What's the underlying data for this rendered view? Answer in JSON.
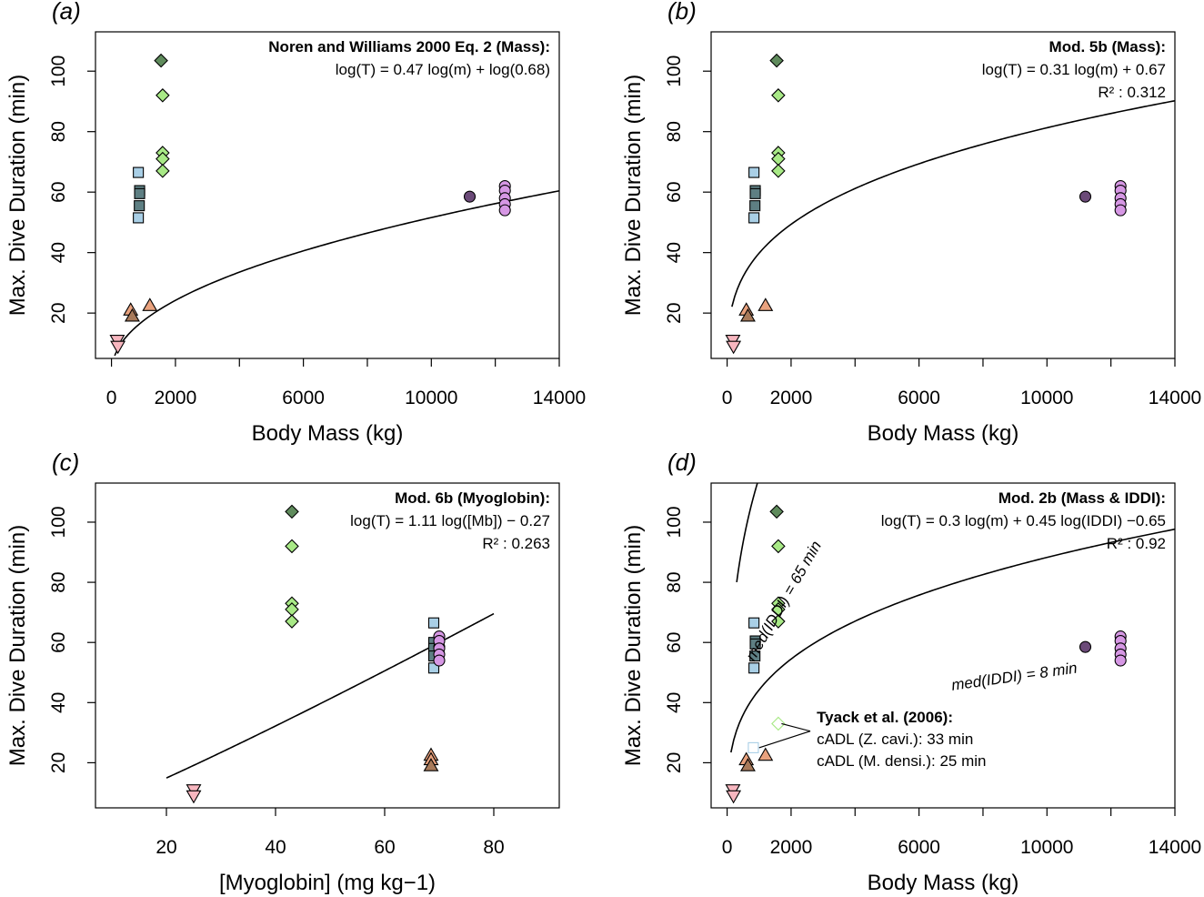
{
  "palette": {
    "triangle_down_pink": "#f7b6bf",
    "triangle_brown": "#a87a5a",
    "triangle_orange": "#e9a27e",
    "square_light": "#a9cfe6",
    "square_dark": "#5e7f83",
    "diamond_dark": "#5f8b5c",
    "diamond_light": "#a8e986",
    "circle_dark": "#6b4a78",
    "circle_light": "#d697e4",
    "outline": "#000000",
    "line": "#000000"
  },
  "chart_data": [
    {
      "panel": "(a)",
      "type": "scatter",
      "xlabel": "Body Mass (kg)",
      "ylabel": "Max. Dive Duration (min)",
      "xlim": [
        -500,
        14000
      ],
      "ylim": [
        5,
        113
      ],
      "xticks": [
        0,
        2000,
        6000,
        10000,
        14000
      ],
      "xticks_minor": [
        4000,
        8000,
        12000
      ],
      "yticks": [
        20,
        40,
        60,
        80,
        100
      ],
      "annotation_title": "Noren and Williams 2000 Eq. 2 (Mass):",
      "annotation_lines": [
        "log(T) = 0.47 log(m) + log(0.68)"
      ],
      "points": [
        {
          "x": 180,
          "y": 11,
          "shape": "tri-down",
          "color": "triangle_down_pink"
        },
        {
          "x": 200,
          "y": 9,
          "shape": "tri-down",
          "color": "triangle_down_pink"
        },
        {
          "x": 600,
          "y": 21,
          "shape": "tri-up",
          "color": "triangle_orange"
        },
        {
          "x": 650,
          "y": 19,
          "shape": "tri-up",
          "color": "triangle_brown"
        },
        {
          "x": 1200,
          "y": 22.5,
          "shape": "tri-up",
          "color": "triangle_orange"
        },
        {
          "x": 840,
          "y": 66.5,
          "shape": "square",
          "color": "square_light"
        },
        {
          "x": 880,
          "y": 60.5,
          "shape": "square",
          "color": "square_dark"
        },
        {
          "x": 880,
          "y": 59.5,
          "shape": "square",
          "color": "square_dark"
        },
        {
          "x": 870,
          "y": 55.5,
          "shape": "square",
          "color": "square_dark"
        },
        {
          "x": 840,
          "y": 51.5,
          "shape": "square",
          "color": "square_light"
        },
        {
          "x": 1550,
          "y": 103.5,
          "shape": "diamond",
          "color": "diamond_dark"
        },
        {
          "x": 1600,
          "y": 92,
          "shape": "diamond",
          "color": "diamond_light"
        },
        {
          "x": 1600,
          "y": 73,
          "shape": "diamond",
          "color": "diamond_light"
        },
        {
          "x": 1600,
          "y": 71,
          "shape": "diamond",
          "color": "diamond_light"
        },
        {
          "x": 1600,
          "y": 67,
          "shape": "diamond",
          "color": "diamond_light"
        },
        {
          "x": 11200,
          "y": 58.5,
          "shape": "circle",
          "color": "circle_dark"
        },
        {
          "x": 12300,
          "y": 62,
          "shape": "circle",
          "color": "circle_light"
        },
        {
          "x": 12300,
          "y": 60.5,
          "shape": "circle",
          "color": "circle_light"
        },
        {
          "x": 12300,
          "y": 58,
          "shape": "circle",
          "color": "circle_light"
        },
        {
          "x": 12300,
          "y": 56,
          "shape": "circle",
          "color": "circle_light"
        },
        {
          "x": 12300,
          "y": 54,
          "shape": "circle",
          "color": "circle_light"
        }
      ],
      "curves": [
        {
          "type": "power",
          "a": 0.68,
          "b": 0.47,
          "x_range": [
            100,
            14000
          ]
        }
      ]
    },
    {
      "panel": "(b)",
      "type": "scatter",
      "xlabel": "Body Mass (kg)",
      "ylabel": "Max. Dive Duration (min)",
      "xlim": [
        -500,
        14000
      ],
      "ylim": [
        5,
        113
      ],
      "xticks": [
        0,
        2000,
        6000,
        10000,
        14000
      ],
      "xticks_minor": [
        4000,
        8000,
        12000
      ],
      "yticks": [
        20,
        40,
        60,
        80,
        100
      ],
      "annotation_title": "Mod. 5b (Mass):",
      "annotation_lines": [
        "log(T) = 0.31 log(m) + 0.67",
        "R² : 0.312"
      ],
      "points": [
        {
          "x": 180,
          "y": 11,
          "shape": "tri-down",
          "color": "triangle_down_pink"
        },
        {
          "x": 200,
          "y": 9,
          "shape": "tri-down",
          "color": "triangle_down_pink"
        },
        {
          "x": 600,
          "y": 21,
          "shape": "tri-up",
          "color": "triangle_orange"
        },
        {
          "x": 650,
          "y": 19,
          "shape": "tri-up",
          "color": "triangle_brown"
        },
        {
          "x": 1200,
          "y": 22.5,
          "shape": "tri-up",
          "color": "triangle_orange"
        },
        {
          "x": 840,
          "y": 66.5,
          "shape": "square",
          "color": "square_light"
        },
        {
          "x": 880,
          "y": 60.5,
          "shape": "square",
          "color": "square_dark"
        },
        {
          "x": 880,
          "y": 59.5,
          "shape": "square",
          "color": "square_dark"
        },
        {
          "x": 870,
          "y": 55.5,
          "shape": "square",
          "color": "square_dark"
        },
        {
          "x": 840,
          "y": 51.5,
          "shape": "square",
          "color": "square_light"
        },
        {
          "x": 1550,
          "y": 103.5,
          "shape": "diamond",
          "color": "diamond_dark"
        },
        {
          "x": 1600,
          "y": 92,
          "shape": "diamond",
          "color": "diamond_light"
        },
        {
          "x": 1600,
          "y": 73,
          "shape": "diamond",
          "color": "diamond_light"
        },
        {
          "x": 1600,
          "y": 71,
          "shape": "diamond",
          "color": "diamond_light"
        },
        {
          "x": 1600,
          "y": 67,
          "shape": "diamond",
          "color": "diamond_light"
        },
        {
          "x": 11200,
          "y": 58.5,
          "shape": "circle",
          "color": "circle_dark"
        },
        {
          "x": 12300,
          "y": 62,
          "shape": "circle",
          "color": "circle_light"
        },
        {
          "x": 12300,
          "y": 60.5,
          "shape": "circle",
          "color": "circle_light"
        },
        {
          "x": 12300,
          "y": 58,
          "shape": "circle",
          "color": "circle_light"
        },
        {
          "x": 12300,
          "y": 56,
          "shape": "circle",
          "color": "circle_light"
        },
        {
          "x": 12300,
          "y": 54,
          "shape": "circle",
          "color": "circle_light"
        }
      ],
      "curves": [
        {
          "type": "power",
          "a": 4.677,
          "b": 0.31,
          "x_range": [
            150,
            14000
          ]
        }
      ]
    },
    {
      "panel": "(c)",
      "type": "scatter",
      "xlabel": "[Myoglobin] (mg kg−1)",
      "ylabel": "Max. Dive Duration (min)",
      "xlim": [
        7,
        92
      ],
      "ylim": [
        5,
        113
      ],
      "xticks": [
        20,
        40,
        60,
        80
      ],
      "xticks_minor": [],
      "yticks": [
        20,
        40,
        60,
        80,
        100
      ],
      "annotation_title": "Mod. 6b (Myoglobin):",
      "annotation_lines": [
        "log(T) = 1.11 log([Mb]) − 0.27",
        "R² : 0.263"
      ],
      "points": [
        {
          "x": 25,
          "y": 11,
          "shape": "tri-down",
          "color": "triangle_down_pink"
        },
        {
          "x": 25,
          "y": 9,
          "shape": "tri-down",
          "color": "triangle_down_pink"
        },
        {
          "x": 68.5,
          "y": 22.5,
          "shape": "tri-up",
          "color": "triangle_orange"
        },
        {
          "x": 68.5,
          "y": 21,
          "shape": "tri-up",
          "color": "triangle_orange"
        },
        {
          "x": 68.5,
          "y": 19,
          "shape": "tri-up",
          "color": "triangle_brown"
        },
        {
          "x": 69,
          "y": 66.5,
          "shape": "square",
          "color": "square_light"
        },
        {
          "x": 69,
          "y": 60,
          "shape": "square",
          "color": "square_dark"
        },
        {
          "x": 69,
          "y": 58,
          "shape": "square",
          "color": "square_dark"
        },
        {
          "x": 69,
          "y": 55.5,
          "shape": "square",
          "color": "square_dark"
        },
        {
          "x": 69,
          "y": 51.5,
          "shape": "square",
          "color": "square_light"
        },
        {
          "x": 43,
          "y": 103.5,
          "shape": "diamond",
          "color": "diamond_dark"
        },
        {
          "x": 43,
          "y": 92,
          "shape": "diamond",
          "color": "diamond_light"
        },
        {
          "x": 43,
          "y": 73,
          "shape": "diamond",
          "color": "diamond_light"
        },
        {
          "x": 43,
          "y": 71,
          "shape": "diamond",
          "color": "diamond_light"
        },
        {
          "x": 43,
          "y": 67,
          "shape": "diamond",
          "color": "diamond_light"
        },
        {
          "x": 70,
          "y": 58.5,
          "shape": "circle",
          "color": "circle_dark"
        },
        {
          "x": 70,
          "y": 62,
          "shape": "circle",
          "color": "circle_light"
        },
        {
          "x": 70,
          "y": 60.5,
          "shape": "circle",
          "color": "circle_light"
        },
        {
          "x": 70,
          "y": 58,
          "shape": "circle",
          "color": "circle_light"
        },
        {
          "x": 70,
          "y": 56,
          "shape": "circle",
          "color": "circle_light"
        },
        {
          "x": 70,
          "y": 54,
          "shape": "circle",
          "color": "circle_light"
        }
      ],
      "curves": [
        {
          "type": "power",
          "a": 0.537,
          "b": 1.11,
          "x_range": [
            20,
            80
          ]
        }
      ]
    },
    {
      "panel": "(d)",
      "type": "scatter",
      "xlabel": "Body Mass (kg)",
      "ylabel": "Max. Dive Duration (min)",
      "xlim": [
        -500,
        14000
      ],
      "ylim": [
        5,
        113
      ],
      "xticks": [
        0,
        2000,
        6000,
        10000,
        14000
      ],
      "xticks_minor": [
        4000,
        8000,
        12000
      ],
      "yticks": [
        20,
        40,
        60,
        80,
        100
      ],
      "annotation_title": "Mod. 2b (Mass & IDDI):",
      "annotation_lines": [
        "log(T) = 0.3 log(m) + 0.45 log(IDDI) −0.65",
        "R² : 0.92"
      ],
      "points": [
        {
          "x": 180,
          "y": 11,
          "shape": "tri-down",
          "color": "triangle_down_pink"
        },
        {
          "x": 200,
          "y": 9,
          "shape": "tri-down",
          "color": "triangle_down_pink"
        },
        {
          "x": 600,
          "y": 21,
          "shape": "tri-up",
          "color": "triangle_orange"
        },
        {
          "x": 650,
          "y": 19,
          "shape": "tri-up",
          "color": "triangle_brown"
        },
        {
          "x": 1200,
          "y": 22.5,
          "shape": "tri-up",
          "color": "triangle_orange"
        },
        {
          "x": 840,
          "y": 66.5,
          "shape": "square",
          "color": "square_light"
        },
        {
          "x": 880,
          "y": 60.5,
          "shape": "square",
          "color": "square_dark"
        },
        {
          "x": 880,
          "y": 59.5,
          "shape": "square",
          "color": "square_dark"
        },
        {
          "x": 870,
          "y": 55.5,
          "shape": "square",
          "color": "square_dark"
        },
        {
          "x": 840,
          "y": 51.5,
          "shape": "square",
          "color": "square_light"
        },
        {
          "x": 1550,
          "y": 103.5,
          "shape": "diamond",
          "color": "diamond_dark"
        },
        {
          "x": 1600,
          "y": 92,
          "shape": "diamond",
          "color": "diamond_light"
        },
        {
          "x": 1600,
          "y": 73,
          "shape": "diamond",
          "color": "diamond_light"
        },
        {
          "x": 1600,
          "y": 71,
          "shape": "diamond",
          "color": "diamond_light"
        },
        {
          "x": 1600,
          "y": 67,
          "shape": "diamond",
          "color": "diamond_light"
        },
        {
          "x": 11200,
          "y": 58.5,
          "shape": "circle",
          "color": "circle_dark"
        },
        {
          "x": 12300,
          "y": 62,
          "shape": "circle",
          "color": "circle_light"
        },
        {
          "x": 12300,
          "y": 60.5,
          "shape": "circle",
          "color": "circle_light"
        },
        {
          "x": 12300,
          "y": 58,
          "shape": "circle",
          "color": "circle_light"
        },
        {
          "x": 12300,
          "y": 56,
          "shape": "circle",
          "color": "circle_light"
        },
        {
          "x": 12300,
          "y": 54,
          "shape": "circle",
          "color": "circle_light"
        },
        {
          "x": 1600,
          "y": 33,
          "shape": "diamond",
          "color": "diamond_light",
          "hollow": true
        },
        {
          "x": 820,
          "y": 25,
          "shape": "square",
          "color": "square_light",
          "hollow": true
        }
      ],
      "curves": [
        {
          "type": "power",
          "a": 14.46,
          "b": 0.3,
          "x_range": [
            300,
            2600
          ],
          "label": "med(IDDI) = 65 min"
        },
        {
          "type": "power",
          "a": 5.57,
          "b": 0.3,
          "x_range": [
            120,
            14000
          ],
          "label": "med(IDDI) = 8 min"
        }
      ],
      "callout": {
        "title": "Tyack et al. (2006):",
        "lines": [
          "cADL (Z. cavi.): 33 min",
          "cADL (M. densi.): 25 min"
        ]
      }
    }
  ]
}
